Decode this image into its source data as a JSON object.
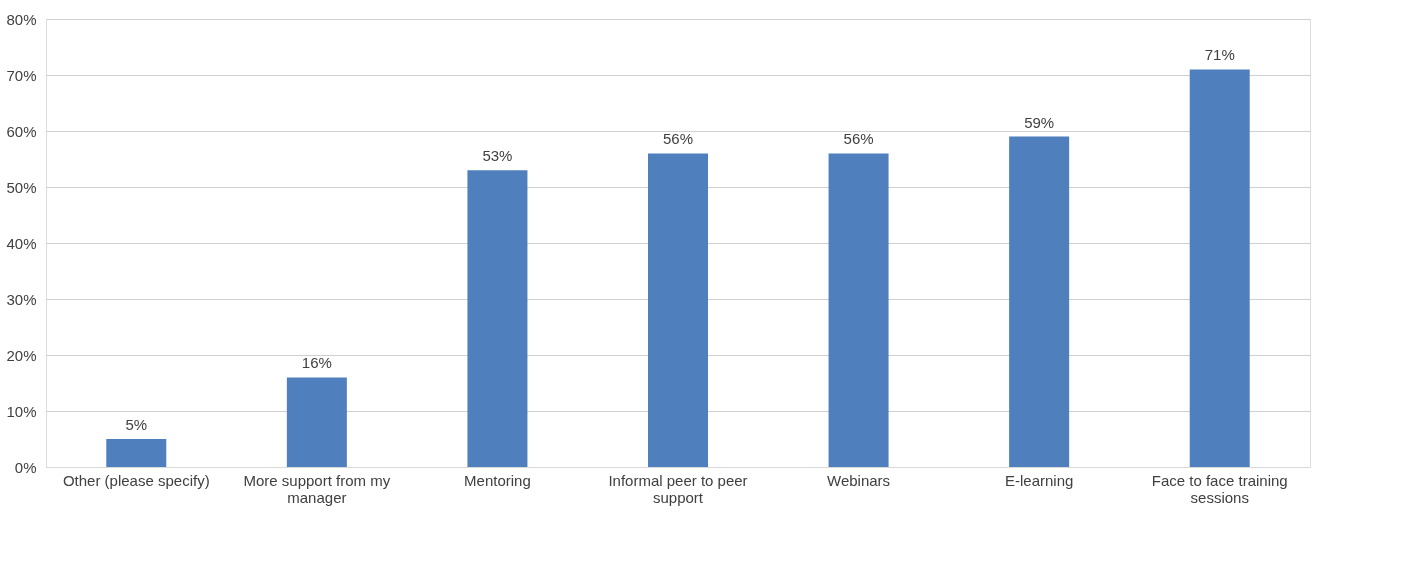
{
  "chart_data": {
    "type": "bar",
    "categories": [
      "Other (please specify)",
      "More support from my manager",
      "Mentoring",
      "Informal peer to peer support",
      "Webinars",
      "E-learning",
      "Face to face training sessions"
    ],
    "values": [
      5,
      16,
      53,
      56,
      56,
      59,
      71
    ],
    "value_labels": [
      "5%",
      "16%",
      "53%",
      "56%",
      "56%",
      "59%",
      "71%"
    ],
    "color": "#4f7fbc",
    "ylim": [
      0,
      80
    ],
    "yticks": [
      {
        "value": 0,
        "label": "0%"
      },
      {
        "value": 10,
        "label": "10%"
      },
      {
        "value": 20,
        "label": "20%"
      },
      {
        "value": 30,
        "label": "30%"
      },
      {
        "value": 40,
        "label": "40%"
      },
      {
        "value": 50,
        "label": "50%"
      },
      {
        "value": 60,
        "label": "60%"
      },
      {
        "value": 70,
        "label": "70%"
      },
      {
        "value": 80,
        "label": "80%"
      }
    ],
    "grid": "y"
  }
}
